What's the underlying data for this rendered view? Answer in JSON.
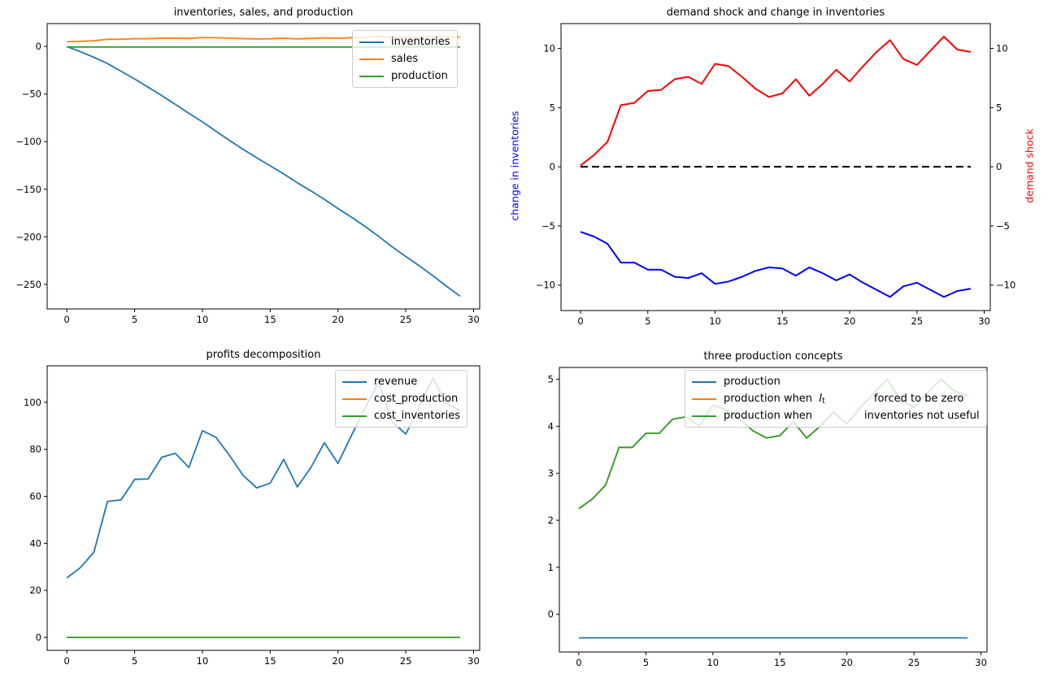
{
  "figure": {
    "background": "#ffffff"
  },
  "palette": {
    "tab_blue": "#1f77b4",
    "tab_orange": "#ff7f0e",
    "tab_green": "#2ca02c",
    "pure_blue": "#0000ff",
    "pure_red": "#ff0000",
    "black": "#000000"
  },
  "chart_data": [
    {
      "type": "line",
      "title": "inventories, sales, and production",
      "x": [
        0,
        1,
        2,
        3,
        4,
        5,
        6,
        7,
        8,
        9,
        10,
        11,
        12,
        13,
        14,
        15,
        16,
        17,
        18,
        19,
        20,
        21,
        22,
        23,
        24,
        25,
        26,
        27,
        28,
        29
      ],
      "xlim": [
        -1.45,
        30.45
      ],
      "ylim": [
        -275.8,
        24.1
      ],
      "xticks": [
        0,
        5,
        10,
        15,
        20,
        25,
        30
      ],
      "yticks": [
        0,
        -50,
        -100,
        -150,
        -200,
        -250
      ],
      "grid": false,
      "legend": {
        "visible": true,
        "loc": "upper right",
        "items": [
          [
            {
              "t": "inventories"
            }
          ],
          [
            {
              "t": "sales"
            }
          ],
          [
            {
              "t": "production"
            }
          ]
        ]
      },
      "series": [
        {
          "name": "inventories",
          "color": "#1f77b4",
          "lw": 1.8,
          "values": [
            0,
            -5.5,
            -11.4,
            -17.9,
            -26,
            -34.1,
            -42.8,
            -51.5,
            -60.8,
            -70.2,
            -79.2,
            -89.1,
            -98.8,
            -108.1,
            -116.9,
            -125.4,
            -134,
            -143.2,
            -151.7,
            -160.7,
            -170.3,
            -179.4,
            -189.2,
            -199.6,
            -210.6,
            -220.7,
            -230.5,
            -240.9,
            -251.9,
            -262.4
          ]
        },
        {
          "name": "sales",
          "color": "#ff7f0e",
          "lw": 1.8,
          "values": [
            5,
            5.4,
            6,
            7.6,
            7.6,
            8.2,
            8.2,
            8.8,
            8.9,
            8.5,
            9.4,
            9.2,
            8.8,
            8.3,
            8,
            8.1,
            8.7,
            8,
            8.5,
            9.1,
            8.6,
            9.3,
            9.9,
            10.5,
            9.6,
            9.3,
            9.9,
            10.5,
            10,
            9.8
          ]
        },
        {
          "name": "production",
          "color": "#2ca02c",
          "lw": 1.8,
          "values": [
            -0.5,
            -0.5,
            -0.5,
            -0.5,
            -0.5,
            -0.5,
            -0.5,
            -0.5,
            -0.5,
            -0.5,
            -0.5,
            -0.5,
            -0.5,
            -0.5,
            -0.5,
            -0.5,
            -0.5,
            -0.5,
            -0.5,
            -0.5,
            -0.5,
            -0.5,
            -0.5,
            -0.5,
            -0.5,
            -0.5,
            -0.5,
            -0.5,
            -0.5,
            -0.5
          ]
        }
      ]
    },
    {
      "type": "line",
      "title": "demand shock and change in inventories",
      "ylabel_left": {
        "text": "change in inventories",
        "color": "#0000ff"
      },
      "ylabel_right": {
        "text": "demand shock",
        "color": "#ff0000"
      },
      "x": [
        0,
        1,
        2,
        3,
        4,
        5,
        6,
        7,
        8,
        9,
        10,
        11,
        12,
        13,
        14,
        15,
        16,
        17,
        18,
        19,
        20,
        21,
        22,
        23,
        24,
        25,
        26,
        27,
        28,
        29
      ],
      "xlim": [
        -1.45,
        30.45
      ],
      "ylim": [
        -12.15,
        12.1
      ],
      "xticks": [
        0,
        5,
        10,
        15,
        20,
        25,
        30
      ],
      "yticks": [
        -10,
        -5,
        0,
        5,
        10
      ],
      "yticks_right": [
        -10,
        -5,
        0,
        5,
        10
      ],
      "grid": false,
      "legend": {
        "visible": false,
        "items": []
      },
      "series": [
        {
          "name": "change in inventories",
          "color": "#0000ff",
          "lw": 2,
          "values": [
            -5.5,
            -5.9,
            -6.5,
            -8.1,
            -8.1,
            -8.7,
            -8.7,
            -9.3,
            -9.4,
            -9,
            -9.9,
            -9.7,
            -9.3,
            -8.8,
            -8.5,
            -8.6,
            -9.2,
            -8.5,
            -9,
            -9.6,
            -9.1,
            -9.8,
            -10.4,
            -11,
            -10.1,
            -9.8,
            -10.4,
            -11,
            -10.5,
            -10.3
          ]
        },
        {
          "name": "demand shock",
          "color": "#ff0000",
          "lw": 2,
          "values": [
            0.1,
            1,
            2.1,
            5.2,
            5.4,
            6.4,
            6.5,
            7.4,
            7.6,
            7,
            8.7,
            8.5,
            7.6,
            6.6,
            5.9,
            6.2,
            7.4,
            6,
            7,
            8.2,
            7.2,
            8.5,
            9.7,
            10.7,
            9.1,
            8.6,
            9.8,
            11,
            9.9,
            9.7
          ]
        },
        {
          "name": "zero line",
          "color": "#000000",
          "lw": 2,
          "dash": [
            9,
            5
          ],
          "values": [
            0,
            0,
            0,
            0,
            0,
            0,
            0,
            0,
            0,
            0,
            0,
            0,
            0,
            0,
            0,
            0,
            0,
            0,
            0,
            0,
            0,
            0,
            0,
            0,
            0,
            0,
            0,
            0,
            0,
            0
          ]
        }
      ]
    },
    {
      "type": "line",
      "title": "profits decomposition",
      "x": [
        0,
        1,
        2,
        3,
        4,
        5,
        6,
        7,
        8,
        9,
        10,
        11,
        12,
        13,
        14,
        15,
        16,
        17,
        18,
        19,
        20,
        21,
        22,
        23,
        24,
        25,
        26,
        27,
        28,
        29
      ],
      "xlim": [
        -1.45,
        30.45
      ],
      "ylim": [
        -5.5,
        115.5
      ],
      "xticks": [
        0,
        5,
        10,
        15,
        20,
        25,
        30
      ],
      "yticks": [
        0,
        20,
        40,
        60,
        80,
        100
      ],
      "grid": false,
      "legend": {
        "visible": true,
        "loc": "upper right",
        "items": [
          [
            {
              "t": "revenue"
            }
          ],
          [
            {
              "t": "cost_production"
            }
          ],
          [
            {
              "t": "cost_inventories"
            }
          ]
        ]
      },
      "series": [
        {
          "name": "revenue",
          "color": "#1f77b4",
          "lw": 1.8,
          "values": [
            25.3,
            29.7,
            36.3,
            57.8,
            58.5,
            67.2,
            67.4,
            76.6,
            78.3,
            72.3,
            87.9,
            85.1,
            77.4,
            68.9,
            63.6,
            65.6,
            75.7,
            64,
            72.3,
            82.8,
            74,
            86,
            97.5,
            108.7,
            91.7,
            86.5,
            98,
            110.3,
            99.5,
            96.5
          ]
        },
        {
          "name": "cost_production",
          "color": "#ff7f0e",
          "lw": 1.8,
          "values": [
            0,
            0,
            0,
            0,
            0,
            0,
            0,
            0,
            0,
            0,
            0,
            0,
            0,
            0,
            0,
            0,
            0,
            0,
            0,
            0,
            0,
            0,
            0,
            0,
            0,
            0,
            0,
            0,
            0,
            0
          ]
        },
        {
          "name": "cost_inventories",
          "color": "#2ca02c",
          "lw": 1.8,
          "values": [
            0,
            0,
            0,
            0,
            0,
            0,
            0,
            0,
            0,
            0,
            0,
            0,
            0,
            0,
            0,
            0,
            0,
            0,
            0,
            0,
            0,
            0,
            0,
            0,
            0,
            0,
            0,
            0,
            0,
            0
          ]
        }
      ]
    },
    {
      "type": "line",
      "title": "three production concepts",
      "x": [
        0,
        1,
        2,
        3,
        4,
        5,
        6,
        7,
        8,
        9,
        10,
        11,
        12,
        13,
        14,
        15,
        16,
        17,
        18,
        19,
        20,
        21,
        22,
        23,
        24,
        25,
        26,
        27,
        28,
        29
      ],
      "xlim": [
        -1.45,
        30.45
      ],
      "ylim": [
        -0.8,
        5.25
      ],
      "xticks": [
        0,
        5,
        10,
        15,
        20,
        25,
        30
      ],
      "yticks": [
        0,
        1,
        2,
        3,
        4,
        5
      ],
      "grid": false,
      "legend": {
        "visible": true,
        "loc": "upper center",
        "items": [
          [
            {
              "t": "production"
            }
          ],
          [
            {
              "t": "production when  "
            },
            {
              "t": "I",
              "italic": true
            },
            {
              "t": "t",
              "sub": true
            },
            {
              "gap": 60
            },
            {
              "t": "forced to be zero"
            }
          ],
          [
            {
              "t": "production when"
            },
            {
              "gap": 64
            },
            {
              "t": "inventories not useful"
            }
          ]
        ]
      },
      "series": [
        {
          "name": "production",
          "color": "#1f77b4",
          "lw": 1.8,
          "values": [
            -0.5,
            -0.5,
            -0.5,
            -0.5,
            -0.5,
            -0.5,
            -0.5,
            -0.5,
            -0.5,
            -0.5,
            -0.5,
            -0.5,
            -0.5,
            -0.5,
            -0.5,
            -0.5,
            -0.5,
            -0.5,
            -0.5,
            -0.5,
            -0.5,
            -0.5,
            -0.5,
            -0.5,
            -0.5,
            -0.5,
            -0.5,
            -0.5,
            -0.5,
            -0.5
          ]
        },
        {
          "name": "production when I_t forced to be zero",
          "color": "#ff7f0e",
          "lw": 1.8,
          "values": [
            2.25,
            2.45,
            2.75,
            3.55,
            3.55,
            3.85,
            3.85,
            4.15,
            4.2,
            4,
            4.45,
            4.35,
            4.15,
            3.9,
            3.75,
            3.8,
            4.1,
            3.75,
            4,
            4.3,
            4.05,
            4.4,
            4.7,
            5,
            4.55,
            4.4,
            4.7,
            5,
            4.75,
            4.65
          ]
        },
        {
          "name": "production when inventories not useful",
          "color": "#2ca02c",
          "lw": 1.8,
          "values": [
            2.25,
            2.45,
            2.75,
            3.55,
            3.55,
            3.85,
            3.85,
            4.15,
            4.2,
            4,
            4.45,
            4.35,
            4.15,
            3.9,
            3.75,
            3.8,
            4.1,
            3.75,
            4,
            4.3,
            4.05,
            4.4,
            4.7,
            5,
            4.55,
            4.4,
            4.7,
            5,
            4.75,
            4.65
          ]
        }
      ]
    }
  ]
}
